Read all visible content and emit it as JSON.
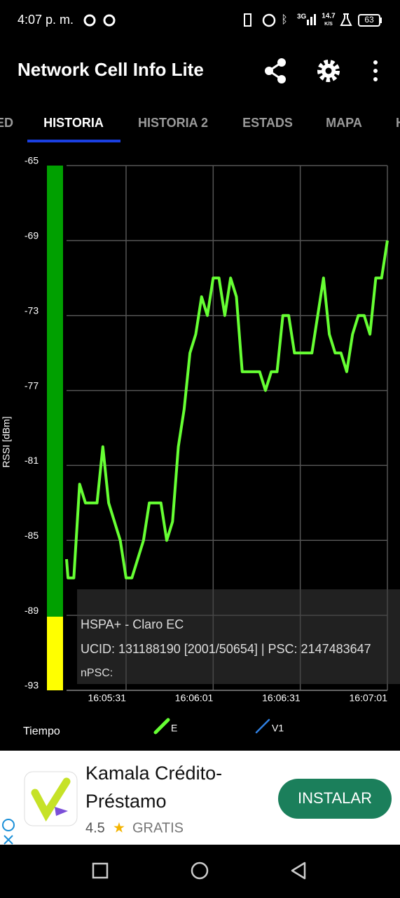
{
  "status_bar": {
    "time": "4:07 p. m.",
    "network": "3G",
    "speed": "14.7",
    "speed_unit": "K/S",
    "battery": "63"
  },
  "app_bar": {
    "title": "Network Cell Info Lite"
  },
  "tabs": [
    "ED",
    "HISTORIA",
    "HISTORIA 2",
    "ESTADS",
    "MAPA",
    "H"
  ],
  "chart_data": {
    "type": "line",
    "y_label": "RSSI [dBm]",
    "x_label": "Tiempo",
    "ylim": [
      -93,
      -65
    ],
    "yticks": [
      -65,
      -69,
      -73,
      -77,
      -81,
      -85,
      -89,
      -93
    ],
    "xlim": [
      10.5,
      121
    ],
    "xticks": [
      {
        "value": 31,
        "label": "16:05:31"
      },
      {
        "value": 61,
        "label": "16:06:01"
      },
      {
        "value": 91,
        "label": "16:06:31"
      },
      {
        "value": 121,
        "label": "16:07:01"
      }
    ],
    "grid": true,
    "series": [
      {
        "name": "E",
        "color": "#66ff33",
        "x": [
          10.5,
          11,
          13,
          15,
          17,
          21,
          23,
          25,
          29,
          31,
          33,
          37,
          39,
          43,
          45,
          47,
          49,
          51,
          53,
          55,
          57,
          59,
          61,
          63,
          65,
          67,
          69,
          71,
          77,
          79,
          81,
          83,
          85,
          87,
          89,
          95,
          99,
          101,
          103,
          105,
          107,
          109,
          111,
          113,
          115,
          117,
          119,
          121
        ],
        "values": [
          -86,
          -87,
          -87,
          -82,
          -83,
          -83,
          -80,
          -83,
          -85,
          -87,
          -87,
          -85,
          -83,
          -83,
          -85,
          -84,
          -80,
          -78,
          -75,
          -74,
          -72,
          -73,
          -71,
          -71,
          -73,
          -71,
          -72,
          -76,
          -76,
          -77,
          -76,
          -76,
          -73,
          -73,
          -75,
          -75,
          -71,
          -74,
          -75,
          -75,
          -76,
          -74,
          -73,
          -73,
          -74,
          -71,
          -71,
          -69
        ]
      },
      {
        "name": "V1",
        "color": "#2f7fe0",
        "x": [],
        "values": []
      }
    ]
  },
  "info": {
    "lines": [
      "HSPA+ - Claro EC",
      "UCID: 131188190 [2001/50654] | PSC: 2147483647",
      "nPSC:"
    ]
  },
  "ad": {
    "title_lines": [
      "Kamala Crédito-",
      "Préstamo"
    ],
    "rating": "4.5",
    "price": "GRATIS",
    "button": "INSTALAR"
  }
}
